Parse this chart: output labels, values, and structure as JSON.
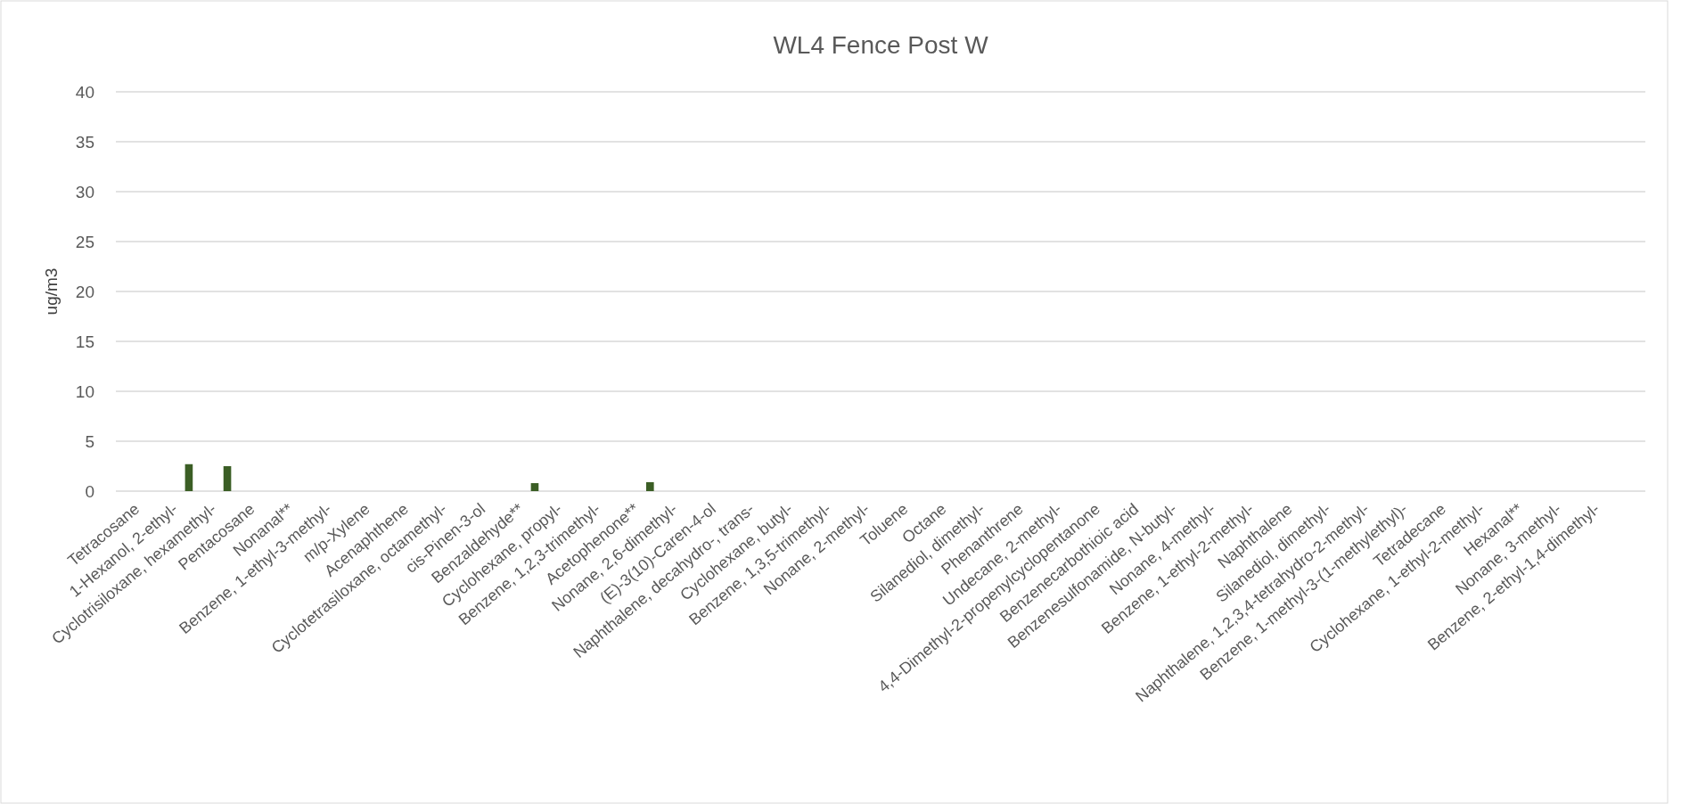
{
  "chart_data": {
    "type": "bar",
    "title": "WL4 Fence Post W",
    "ylabel": "ug/m3",
    "categories": [
      "Tetracosane",
      "1-Hexanol, 2-ethyl-",
      "Cyclotrisiloxane, hexamethyl-",
      "Pentacosane",
      "Nonanal**",
      "Benzene, 1-ethyl-3-methyl-",
      "m/p-Xylene",
      "Acenaphthene",
      "Cyclotetrasiloxane, octamethyl-",
      "cis-Pinen-3-ol",
      "Benzaldehyde**",
      "Cyclohexane, propyl-",
      "Benzene, 1,2,3-trimethyl-",
      "Acetophenone**",
      "Nonane, 2,6-dimethyl-",
      "(E)-3(10)-Caren-4-ol",
      "Naphthalene, decahydro-, trans-",
      "Cyclohexane, butyl-",
      "Benzene, 1,3,5-trimethyl-",
      "Nonane, 2-methyl-",
      "Toluene",
      "Octane",
      "Silanediol, dimethyl-",
      "Phenanthrene",
      "Undecane, 2-methyl-",
      "4,4-Dimethyl-2-propenylcyclopentanone",
      "Benzenecarbothioic acid",
      "Benzenesulfonamide, N-butyl-",
      "Nonane, 4-methyl-",
      "Benzene, 1-ethyl-2-methyl-",
      "Naphthalene",
      "Silanediol, dimethyl-",
      "Naphthalene, 1,2,3,4-tetrahydro-2-methyl-",
      "Benzene, 1-methyl-3-(1-methylethyl)-",
      "Tetradecane",
      "Cyclohexane, 1-ethyl-2-methyl-",
      "Hexanal**",
      "Nonane, 3-methyl-",
      "Benzene, 2-ethyl-1,4-dimethyl-"
    ],
    "values": [
      0,
      2.7,
      2.5,
      0,
      0,
      0,
      0,
      0,
      0,
      0,
      0.8,
      0,
      0,
      0.9,
      0,
      0,
      0,
      0,
      0,
      0,
      0,
      0,
      0,
      0,
      0,
      0,
      0,
      0,
      0,
      0,
      0,
      0,
      0,
      0,
      0,
      0,
      0,
      0,
      0
    ],
    "color": "#3b5e25",
    "ylim": [
      0,
      40
    ],
    "yticks": [
      0,
      5,
      10,
      15,
      20,
      25,
      30,
      35,
      40
    ],
    "grid": true
  }
}
